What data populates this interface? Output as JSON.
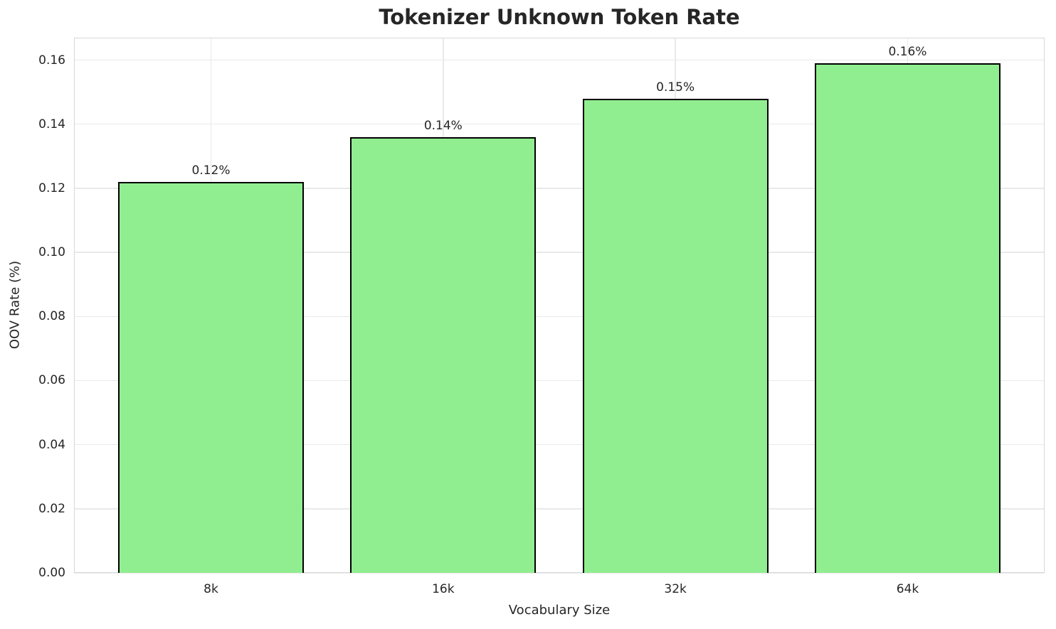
{
  "chart_data": {
    "type": "bar",
    "title": "Tokenizer Unknown Token Rate",
    "xlabel": "Vocabulary Size",
    "ylabel": "OOV Rate (%)",
    "categories": [
      "8k",
      "16k",
      "32k",
      "64k"
    ],
    "values": [
      0.122,
      0.136,
      0.148,
      0.159
    ],
    "bar_labels": [
      "0.12%",
      "0.14%",
      "0.15%",
      "0.16%"
    ],
    "y_ticks": [
      0.0,
      0.02,
      0.04,
      0.06,
      0.08,
      0.1,
      0.12,
      0.14,
      0.16
    ],
    "y_tick_labels": [
      "0.00",
      "0.02",
      "0.04",
      "0.06",
      "0.08",
      "0.10",
      "0.12",
      "0.14",
      "0.16"
    ],
    "ylim": [
      0,
      0.167
    ],
    "grid": true,
    "legend_position": "none",
    "bar_color": "#90EE90",
    "bar_edge_color": "#000000"
  },
  "colors": {
    "background": "#ffffff",
    "grid": "#e9e9e9",
    "spine": "#d8d8d8",
    "text": "#262626"
  }
}
